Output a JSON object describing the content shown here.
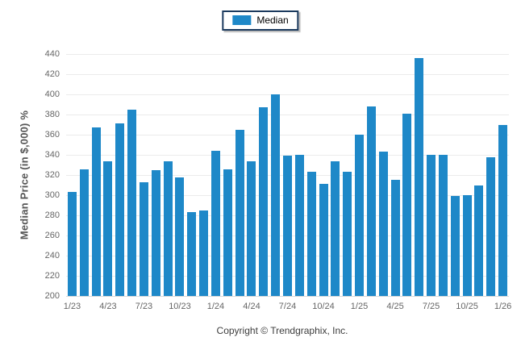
{
  "legend": {
    "label": "Median",
    "swatch_color": "#1e88c8"
  },
  "y_axis": {
    "title": "Median Price (in $,000) %"
  },
  "footer": {
    "copyright": "Copyright © Trendgraphix, Inc."
  },
  "chart_data": {
    "type": "bar",
    "title": "",
    "xlabel": "",
    "ylabel": "Median Price (in $,000) %",
    "legend": [
      "Median"
    ],
    "legend_position": "top-center",
    "grid": "horizontal",
    "bar_color": "#1e88c8",
    "ylim": [
      200,
      440
    ],
    "y_tick_step": 20,
    "x_tick_every": 3,
    "categories": [
      "1/23",
      "2/23",
      "3/23",
      "4/23",
      "5/23",
      "6/23",
      "7/23",
      "8/23",
      "9/23",
      "10/23",
      "11/23",
      "12/23",
      "1/24",
      "2/24",
      "3/24",
      "4/24",
      "5/24",
      "6/24",
      "7/24",
      "8/24",
      "9/24",
      "10/24",
      "11/24",
      "12/24",
      "1/25",
      "2/25",
      "3/25",
      "4/25",
      "5/25",
      "6/25",
      "7/25",
      "8/25",
      "9/25",
      "10/25",
      "11/25",
      "12/25",
      "1/26"
    ],
    "values": [
      303,
      326,
      367,
      334,
      371,
      385,
      313,
      325,
      334,
      318,
      283,
      285,
      344,
      326,
      365,
      334,
      387,
      400,
      339,
      340,
      323,
      311,
      334,
      323,
      360,
      388,
      343,
      315,
      381,
      436,
      340,
      340,
      299,
      300,
      310,
      338,
      370
    ],
    "x_tick_labels": [
      "1/23",
      "4/23",
      "7/23",
      "10/23",
      "1/24",
      "4/24",
      "7/24",
      "10/24",
      "1/25",
      "4/25",
      "7/25",
      "10/25",
      "1/26"
    ]
  }
}
